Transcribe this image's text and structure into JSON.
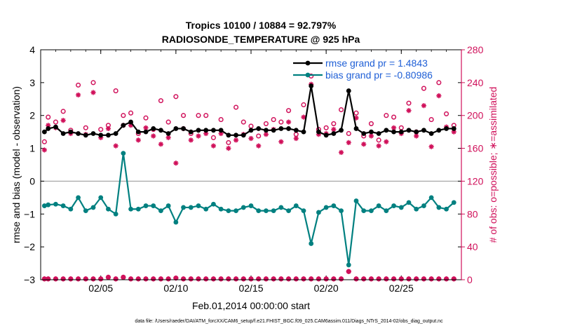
{
  "chart_data": {
    "type": "scatter",
    "title": "Tropics 10100 / 10884 = 92.797%",
    "subtitle": "RADIOSONDE_TEMPERATURE @ 925 hPa",
    "xlabel": "Feb.01,2014 00:00:00 start",
    "ylabel": "rmse and bias (model - observation)",
    "ylabel_right": "# of obs: o=possible; ∗=assimilated",
    "footnote": "data file: /Users/raeder/DAI/ATM_forcXX/CAM6_setup/f.e21.FHIST_BGC.f09_025.CAM6assim.011/Diags_NTrS_2014-02/obs_diag_output.nc",
    "xlim": [
      1.0,
      29.0
    ],
    "ylim": [
      -3,
      4
    ],
    "ylim_right": [
      0,
      280
    ],
    "x_ticks": [
      5,
      10,
      15,
      20,
      25
    ],
    "x_tick_labels": [
      "02/05",
      "02/10",
      "02/15",
      "02/20",
      "02/25"
    ],
    "y_ticks": [
      -3,
      -2,
      -1,
      0,
      1,
      2,
      3,
      4
    ],
    "y_tick_labels": [
      "−3",
      "−2",
      "−1",
      "0",
      "1",
      "2",
      "3",
      "4"
    ],
    "y_ticks_right": [
      0,
      40,
      80,
      120,
      160,
      200,
      240,
      280
    ],
    "y_tick_labels_right": [
      "0",
      "40",
      "80",
      "120",
      "160",
      "200",
      "240",
      "280"
    ],
    "legend_position": "top-right",
    "colors": {
      "rmse": "#000000",
      "bias": "#008080",
      "obs": "#d0105a",
      "legend_text": "#1f5fd6",
      "zero_line": "#a0a0a0"
    },
    "series": [
      {
        "name": "rmse grand pr = 1.4843",
        "x": [
          1.25,
          1.5,
          2.0,
          2.5,
          3.0,
          3.5,
          4.0,
          4.5,
          5.0,
          5.5,
          6.0,
          6.5,
          7.0,
          7.5,
          8.0,
          8.5,
          9.0,
          9.5,
          10.0,
          10.5,
          11.0,
          11.5,
          12.0,
          12.5,
          13.0,
          13.5,
          14.0,
          14.5,
          15.0,
          15.5,
          16.0,
          16.5,
          17.0,
          17.5,
          18.0,
          18.5,
          19.0,
          19.5,
          20.0,
          20.5,
          21.0,
          21.5,
          22.0,
          22.5,
          23.0,
          23.5,
          24.0,
          24.5,
          25.0,
          25.5,
          26.0,
          26.5,
          27.0,
          27.5,
          28.0,
          28.5
        ],
        "y": [
          1.5,
          1.6,
          1.65,
          1.45,
          1.5,
          1.45,
          1.4,
          1.45,
          1.4,
          1.4,
          1.45,
          1.7,
          1.8,
          1.5,
          1.5,
          1.6,
          1.55,
          1.45,
          1.6,
          1.6,
          1.5,
          1.55,
          1.55,
          1.55,
          1.55,
          1.4,
          1.4,
          1.4,
          1.55,
          1.6,
          1.55,
          1.55,
          1.6,
          1.6,
          1.55,
          1.5,
          2.9,
          1.5,
          1.4,
          1.45,
          1.55,
          2.75,
          1.6,
          1.45,
          1.5,
          1.45,
          1.55,
          1.5,
          1.5,
          1.55,
          1.5,
          1.55,
          1.45,
          1.55,
          1.6,
          1.6
        ]
      },
      {
        "name": "bias grand pr = -0.80986",
        "x": [
          1.25,
          1.5,
          2.0,
          2.5,
          3.0,
          3.5,
          4.0,
          4.5,
          5.0,
          5.5,
          6.0,
          6.5,
          7.0,
          7.5,
          8.0,
          8.5,
          9.0,
          9.5,
          10.0,
          10.5,
          11.0,
          11.5,
          12.0,
          12.5,
          13.0,
          13.5,
          14.0,
          14.5,
          15.0,
          15.5,
          16.0,
          16.5,
          17.0,
          17.5,
          18.0,
          18.5,
          19.0,
          19.5,
          20.0,
          20.5,
          21.0,
          21.5,
          22.0,
          22.5,
          23.0,
          23.5,
          24.0,
          24.5,
          25.0,
          25.5,
          26.0,
          26.5,
          27.0,
          27.5,
          28.0,
          28.5
        ],
        "y": [
          -0.75,
          -0.72,
          -0.7,
          -0.75,
          -0.85,
          -0.5,
          -0.9,
          -0.8,
          -0.5,
          -0.85,
          -1.0,
          0.85,
          -0.85,
          -0.85,
          -0.75,
          -0.75,
          -0.9,
          -0.75,
          -1.25,
          -0.8,
          -0.8,
          -0.75,
          -0.85,
          -0.7,
          -0.85,
          -0.9,
          -0.9,
          -0.8,
          -0.75,
          -0.9,
          -0.9,
          -0.9,
          -0.8,
          -0.9,
          -0.75,
          -0.9,
          -1.9,
          -0.95,
          -0.8,
          -0.75,
          -0.9,
          -2.55,
          -0.6,
          -0.9,
          -0.9,
          -0.75,
          -0.9,
          -0.75,
          -0.8,
          -0.65,
          -0.85,
          -0.75,
          -0.5,
          -0.8,
          -0.85,
          -0.65
        ]
      },
      {
        "name": "",
        "marker": "circle",
        "x": [
          1.25,
          1.5,
          2.0,
          2.5,
          3.0,
          3.5,
          4.0,
          4.5,
          5.0,
          5.5,
          6.0,
          6.5,
          7.0,
          7.5,
          8.0,
          8.5,
          9.0,
          9.5,
          10.0,
          10.5,
          11.0,
          11.5,
          12.0,
          12.5,
          13.0,
          13.5,
          14.0,
          14.5,
          15.0,
          15.5,
          16.0,
          16.5,
          17.0,
          17.5,
          18.0,
          18.5,
          19.0,
          19.5,
          20.0,
          20.5,
          21.0,
          21.5,
          22.0,
          22.5,
          23.0,
          23.5,
          24.0,
          24.5,
          25.0,
          25.5,
          26.0,
          26.5,
          27.0,
          27.5,
          28.0,
          28.5
        ],
        "y": [
          168,
          198,
          192,
          205,
          182,
          237,
          185,
          240,
          183,
          188,
          230,
          200,
          203,
          178,
          197,
          183,
          218,
          192,
          223,
          200,
          178,
          200,
          200,
          173,
          195,
          167,
          210,
          192,
          187,
          175,
          190,
          195,
          192,
          206,
          177,
          213,
          248,
          183,
          185,
          190,
          207,
          178,
          203,
          175,
          190,
          170,
          200,
          198,
          185,
          215,
          180,
          233,
          195,
          240,
          202,
          188
        ]
      },
      {
        "name": "",
        "marker": "asterisk",
        "x": [
          1.25,
          1.5,
          2.0,
          2.5,
          3.0,
          3.5,
          4.0,
          4.5,
          5.0,
          5.5,
          6.0,
          6.5,
          7.0,
          7.5,
          8.0,
          8.5,
          9.0,
          9.5,
          10.0,
          10.5,
          11.0,
          11.5,
          12.0,
          12.5,
          13.0,
          13.5,
          14.0,
          14.5,
          15.0,
          15.5,
          16.0,
          16.5,
          17.0,
          17.5,
          18.0,
          18.5,
          19.0,
          19.5,
          20.0,
          20.5,
          21.0,
          21.5,
          22.0,
          22.5,
          23.0,
          23.5,
          24.0,
          24.5,
          25.0,
          25.5,
          26.0,
          26.5,
          27.0,
          27.5,
          28.0,
          28.5
        ],
        "y": [
          158,
          188,
          185,
          194,
          178,
          225,
          177,
          228,
          173,
          184,
          163,
          188,
          188,
          170,
          185,
          175,
          165,
          173,
          142,
          184,
          170,
          175,
          178,
          163,
          178,
          160,
          170,
          177,
          172,
          163,
          177,
          183,
          168,
          192,
          172,
          198,
          238,
          177,
          178,
          183,
          155,
          167,
          197,
          165,
          175,
          163,
          168,
          185,
          178,
          206,
          175,
          212,
          162,
          224,
          186,
          180
        ]
      },
      {
        "name": "",
        "marker": "circle-low",
        "x": [
          1.25,
          1.5,
          2.0,
          2.5,
          3.0,
          3.5,
          4.0,
          4.5,
          5.0,
          5.5,
          6.0,
          6.5,
          7.0,
          7.5,
          8.0,
          8.5,
          9.0,
          9.5,
          10.0,
          10.5,
          11.0,
          11.5,
          12.0,
          12.5,
          13.0,
          13.5,
          14.0,
          14.5,
          15.0,
          15.5,
          16.0,
          16.5,
          17.0,
          17.5,
          18.0,
          18.5,
          19.0,
          19.5,
          20.0,
          20.5,
          21.0,
          21.5,
          22.0,
          22.5,
          23.0,
          23.5,
          24.0,
          24.5,
          25.0,
          25.5,
          26.0,
          26.5,
          27.0,
          27.5,
          28.0,
          28.5
        ],
        "y": [
          1,
          1,
          1,
          1,
          1,
          1,
          1,
          1,
          1,
          3,
          1,
          3,
          1,
          1,
          1,
          1,
          1,
          1,
          2,
          1,
          1,
          1,
          1,
          1,
          1,
          1,
          1,
          1,
          1,
          1,
          1,
          1,
          1,
          1,
          1,
          1,
          1,
          1,
          1,
          1,
          1,
          10,
          1,
          1,
          1,
          1,
          1,
          1,
          1,
          1,
          1,
          1,
          1,
          1,
          1,
          1
        ]
      }
    ]
  }
}
